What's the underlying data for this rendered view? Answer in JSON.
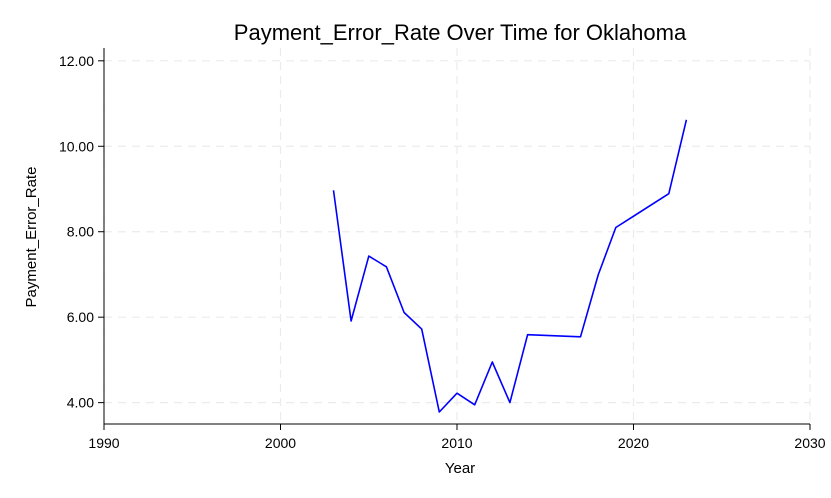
{
  "chart_data": {
    "type": "line",
    "title": "Payment_Error_Rate Over Time for Oklahoma",
    "xlabel": "Year",
    "ylabel": "Payment_Error_Rate",
    "xlim": [
      1990,
      2030
    ],
    "ylim": [
      3.5,
      12.3
    ],
    "x_ticks": [
      1990,
      2000,
      2010,
      2020,
      2030
    ],
    "y_ticks": [
      4.0,
      6.0,
      8.0,
      10.0,
      12.0
    ],
    "y_tick_labels": [
      "4.00",
      "6.00",
      "8.00",
      "10.00",
      "12.00"
    ],
    "grid": true,
    "series": [
      {
        "color": "#0000ff",
        "x": [
          2003,
          2004,
          2005,
          2006,
          2007,
          2008,
          2009,
          2010,
          2011,
          2012,
          2013,
          2014,
          2017,
          2018,
          2019,
          2022,
          2023
        ],
        "y": [
          8.97,
          5.91,
          7.43,
          7.18,
          6.11,
          5.72,
          3.78,
          4.22,
          3.95,
          4.95,
          4.0,
          5.59,
          5.54,
          6.99,
          8.1,
          8.89,
          10.62
        ]
      }
    ]
  }
}
